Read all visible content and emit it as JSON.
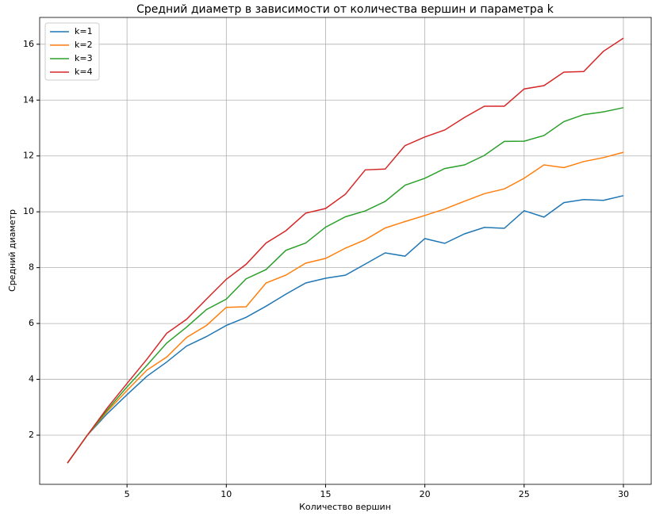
{
  "chart_data": {
    "type": "line",
    "title": "Средний диаметр в зависимости от количества вершин и параметра k",
    "x_label": "Количество вершин",
    "y_label": "Средний диаметр",
    "x": [
      2,
      3,
      4,
      5,
      6,
      7,
      8,
      9,
      10,
      11,
      12,
      13,
      14,
      15,
      16,
      17,
      18,
      19,
      20,
      21,
      22,
      23,
      24,
      25,
      26,
      27,
      28,
      29,
      30
    ],
    "series": [
      {
        "name": "k=1",
        "color": "#1f77b4",
        "values": [
          1,
          2,
          2.77,
          3.45,
          4.11,
          4.62,
          5.19,
          5.53,
          5.93,
          6.22,
          6.62,
          7.05,
          7.45,
          7.62,
          7.73,
          8.13,
          8.53,
          8.41,
          9.04,
          8.87,
          9.21,
          9.44,
          9.41,
          10.04,
          9.81,
          10.33,
          10.44,
          10.41,
          10.58
        ]
      },
      {
        "name": "k=2",
        "color": "#ff7f0e",
        "values": [
          1,
          2,
          2.85,
          3.6,
          4.33,
          4.8,
          5.5,
          5.93,
          6.58,
          6.6,
          7.45,
          7.73,
          8.16,
          8.33,
          8.7,
          9.0,
          9.42,
          9.65,
          9.87,
          10.1,
          10.38,
          10.65,
          10.82,
          11.2,
          11.68,
          11.58,
          11.8,
          11.94,
          12.13
        ]
      },
      {
        "name": "k=3",
        "color": "#2ca02c",
        "values": [
          1,
          2,
          2.9,
          3.73,
          4.5,
          5.3,
          5.87,
          6.5,
          6.87,
          7.6,
          7.93,
          8.62,
          8.88,
          9.45,
          9.82,
          10.03,
          10.37,
          10.95,
          11.2,
          11.55,
          11.68,
          12.02,
          12.52,
          12.53,
          12.73,
          13.23,
          13.48,
          13.58,
          13.73
        ]
      },
      {
        "name": "k=4",
        "color": "#d62728",
        "values": [
          1,
          2,
          2.97,
          3.85,
          4.72,
          5.65,
          6.15,
          6.87,
          7.58,
          8.12,
          8.88,
          9.32,
          9.95,
          10.12,
          10.63,
          11.5,
          11.53,
          12.37,
          12.68,
          12.93,
          13.38,
          13.78,
          13.78,
          14.4,
          14.52,
          15.0,
          15.02,
          15.75,
          16.22
        ]
      }
    ],
    "xlim": [
      0.6,
      31.4
    ],
    "ylim": [
      0.24,
      16.96
    ],
    "xticks": [
      5,
      10,
      15,
      20,
      25,
      30
    ],
    "yticks": [
      2,
      4,
      6,
      8,
      10,
      12,
      14,
      16
    ],
    "grid": true,
    "legend": "upper-left"
  }
}
